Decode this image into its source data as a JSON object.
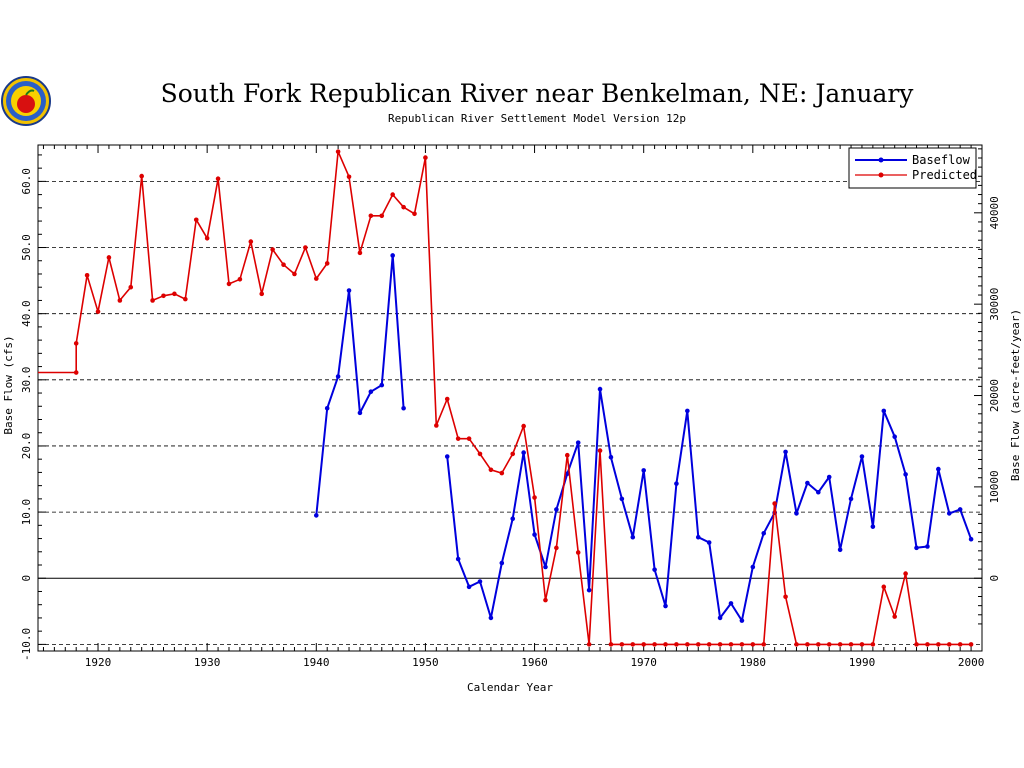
{
  "logo": {
    "name": "agency-seal"
  },
  "chart_data": {
    "type": "line",
    "title": "South Fork Republican River near Benkelman, NE: January",
    "subtitle": "Republican River Settlement Model Version 12p",
    "xlabel": "Calendar Year",
    "ylabel_left": "Base Flow (cfs)",
    "ylabel_right": "Base Flow (acre-feet/year)",
    "xlim": [
      1914.5,
      2001
    ],
    "ylim": [
      -11,
      65.5
    ],
    "x_ticks": [
      1920,
      1930,
      1940,
      1950,
      1960,
      1970,
      1980,
      1990,
      2000
    ],
    "y_ticks": [
      -10,
      0,
      10,
      20,
      30,
      40,
      50,
      60
    ],
    "y_tick_labels": [
      "-10.0",
      "0",
      "10.0",
      "20.0",
      "30.0",
      "40.0",
      "50.0",
      "60.0"
    ],
    "y_right_ticks": [
      0,
      10000,
      20000,
      30000,
      40000
    ],
    "y_right_tick_labels": [
      "0",
      "10000",
      "20000",
      "30000",
      "40000"
    ],
    "acre_ft_per_cfs_year": 724,
    "gridlines": "dashed horizontal at labeled y ticks",
    "zero_line": true,
    "legend_position": "top-right",
    "series": [
      {
        "name": "Baseflow",
        "color": "#0000dd",
        "segments": [
          [
            [
              1940,
              9.5
            ],
            [
              1941,
              25.7
            ],
            [
              1942,
              30.5
            ],
            [
              1943,
              43.5
            ],
            [
              1944,
              25
            ],
            [
              1945,
              28.2
            ],
            [
              1946,
              29.2
            ],
            [
              1947,
              48.8
            ],
            [
              1948,
              25.7
            ]
          ],
          [
            [
              1952,
              18.4
            ],
            [
              1953,
              2.9
            ],
            [
              1954,
              -1.3
            ],
            [
              1955,
              -0.5
            ],
            [
              1956,
              -6
            ],
            [
              1957,
              2.3
            ],
            [
              1958,
              9
            ],
            [
              1959,
              19
            ],
            [
              1960,
              6.6
            ],
            [
              1961,
              1.7
            ],
            [
              1962,
              10.4
            ],
            [
              1963,
              15.8
            ],
            [
              1964,
              20.5
            ],
            [
              1965,
              -1.8
            ],
            [
              1966,
              28.6
            ],
            [
              1967,
              18.3
            ],
            [
              1968,
              12
            ],
            [
              1969,
              6.2
            ],
            [
              1970,
              16.3
            ],
            [
              1971,
              1.3
            ],
            [
              1972,
              -4.2
            ],
            [
              1973,
              14.3
            ],
            [
              1974,
              25.3
            ],
            [
              1975,
              6.2
            ],
            [
              1976,
              5.4
            ],
            [
              1977,
              -6
            ],
            [
              1978,
              -3.8
            ],
            [
              1979,
              -6.4
            ],
            [
              1980,
              1.7
            ],
            [
              1981,
              6.8
            ],
            [
              1982,
              9.9
            ],
            [
              1983,
              19.1
            ],
            [
              1984,
              9.8
            ],
            [
              1985,
              14.4
            ],
            [
              1986,
              13
            ],
            [
              1987,
              15.3
            ],
            [
              1988,
              4.3
            ],
            [
              1989,
              12
            ],
            [
              1990,
              18.4
            ],
            [
              1991,
              7.8
            ],
            [
              1992,
              25.3
            ],
            [
              1993,
              21.4
            ],
            [
              1994,
              15.7
            ],
            [
              1995,
              4.6
            ],
            [
              1996,
              4.8
            ],
            [
              1997,
              16.5
            ],
            [
              1998,
              9.8
            ],
            [
              1999,
              10.4
            ],
            [
              2000,
              5.9
            ]
          ]
        ]
      },
      {
        "name": "Predicted",
        "color": "#dd0000",
        "segments": [
          [
            [
              1914.5,
              31.1
            ],
            [
              1918,
              31.1
            ],
            [
              1918,
              35.5
            ],
            [
              1919,
              45.8
            ],
            [
              1920,
              40.3
            ],
            [
              1921,
              48.5
            ],
            [
              1922,
              42
            ],
            [
              1923,
              44
            ],
            [
              1924,
              60.8
            ],
            [
              1925,
              42
            ],
            [
              1926,
              42.7
            ],
            [
              1927,
              43
            ],
            [
              1928,
              42.2
            ],
            [
              1929,
              54.2
            ],
            [
              1930,
              51.4
            ],
            [
              1931,
              60.4
            ],
            [
              1932,
              44.5
            ],
            [
              1933,
              45.2
            ],
            [
              1934,
              50.9
            ],
            [
              1935,
              43
            ],
            [
              1936,
              49.7
            ],
            [
              1937,
              47.4
            ],
            [
              1938,
              46
            ],
            [
              1939,
              50
            ],
            [
              1940,
              45.3
            ],
            [
              1941,
              47.6
            ],
            [
              1942,
              64.5
            ],
            [
              1943,
              60.7
            ],
            [
              1944,
              49.2
            ],
            [
              1945,
              54.8
            ],
            [
              1946,
              54.8
            ],
            [
              1947,
              58
            ],
            [
              1948,
              56.1
            ],
            [
              1949,
              55.1
            ],
            [
              1950,
              63.6
            ],
            [
              1951,
              23.1
            ],
            [
              1952,
              27.1
            ],
            [
              1953,
              21.1
            ],
            [
              1954,
              21.1
            ],
            [
              1955,
              18.8
            ],
            [
              1956,
              16.4
            ],
            [
              1957,
              15.9
            ],
            [
              1958,
              18.8
            ],
            [
              1959,
              23
            ],
            [
              1960,
              12.2
            ],
            [
              1961,
              -3.3
            ],
            [
              1962,
              4.6
            ],
            [
              1963,
              18.6
            ],
            [
              1964,
              3.9
            ],
            [
              1965,
              -10
            ],
            [
              1966,
              19.3
            ],
            [
              1967,
              -10
            ],
            [
              1968,
              -10
            ],
            [
              1969,
              -10
            ],
            [
              1970,
              -10
            ],
            [
              1971,
              -10
            ],
            [
              1972,
              -10
            ],
            [
              1973,
              -10
            ],
            [
              1974,
              -10
            ],
            [
              1975,
              -10
            ],
            [
              1976,
              -10
            ],
            [
              1977,
              -10
            ],
            [
              1978,
              -10
            ],
            [
              1979,
              -10
            ],
            [
              1980,
              -10
            ],
            [
              1981,
              -10
            ],
            [
              1982,
              11.3
            ],
            [
              1983,
              -2.8
            ],
            [
              1984,
              -10
            ],
            [
              1985,
              -10
            ],
            [
              1986,
              -10
            ],
            [
              1987,
              -10
            ],
            [
              1988,
              -10
            ],
            [
              1989,
              -10
            ],
            [
              1990,
              -10
            ],
            [
              1991,
              -10
            ],
            [
              1992,
              -1.3
            ],
            [
              1993,
              -5.8
            ],
            [
              1994,
              0.7
            ],
            [
              1995,
              -10
            ],
            [
              1996,
              -10
            ],
            [
              1997,
              -10
            ],
            [
              1998,
              -10
            ],
            [
              1999,
              -10
            ],
            [
              2000,
              -10
            ]
          ]
        ]
      }
    ]
  }
}
